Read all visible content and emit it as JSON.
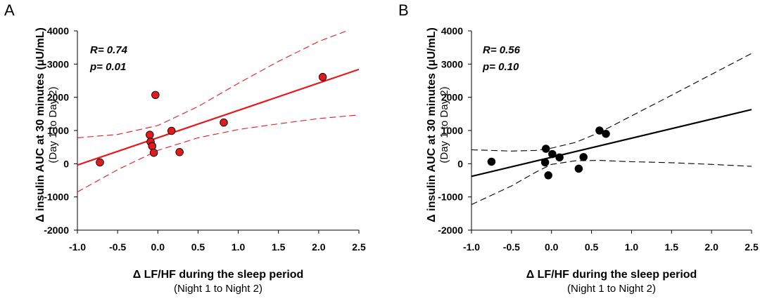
{
  "chart_data": [
    {
      "panel_label": "A",
      "type": "scatter",
      "color": "#e41a1c",
      "point_color": "#e31a1c",
      "ci_style": "dashed",
      "ylabel": "Δ insulin AUC at 30 minutes (μU/mL)",
      "ylabel_sub": "(Day 1 to Day 2)",
      "xlabel": "Δ LF/HF during the sleep period",
      "xlabel_sub": "(Night 1 to Night 2)",
      "xlim": [
        -1.0,
        2.5
      ],
      "ylim": [
        -2000,
        4000
      ],
      "xticks": [
        "-1.0",
        "-0.5",
        "0.0",
        "0.5",
        "1.0",
        "1.5",
        "2.0",
        "2.5"
      ],
      "yticks": [
        "4000",
        "3000",
        "2000",
        "1000",
        "0",
        "-1000",
        "-2000"
      ],
      "r_label": "R",
      "r_value": "= 0.74",
      "p_label": "p",
      "p_value": "= 0.01",
      "grid": false,
      "points": [
        {
          "x": -0.72,
          "y": 40
        },
        {
          "x": -0.1,
          "y": 870
        },
        {
          "x": -0.09,
          "y": 660
        },
        {
          "x": -0.07,
          "y": 530
        },
        {
          "x": -0.05,
          "y": 330
        },
        {
          "x": -0.03,
          "y": 2070
        },
        {
          "x": 0.17,
          "y": 990
        },
        {
          "x": 0.27,
          "y": 350
        },
        {
          "x": 0.82,
          "y": 1240
        },
        {
          "x": 2.05,
          "y": 2610
        }
      ],
      "fit": {
        "x": [
          -1.0,
          2.5
        ],
        "y": [
          -40,
          2840
        ]
      },
      "ci_upper": {
        "x": [
          -1.0,
          -0.5,
          0.0,
          0.5,
          1.0,
          1.5,
          2.0,
          2.35
        ],
        "y": [
          780,
          880,
          1150,
          1720,
          2420,
          3080,
          3680,
          4000
        ]
      },
      "ci_lower": {
        "x": [
          -1.0,
          -0.5,
          0.0,
          0.5,
          1.0,
          1.5,
          2.0,
          2.5
        ],
        "y": [
          -850,
          -180,
          400,
          780,
          1030,
          1200,
          1360,
          1470
        ]
      }
    },
    {
      "panel_label": "B",
      "type": "scatter",
      "color": "#000000",
      "point_color": "#000000",
      "ci_style": "dashed",
      "ylabel": "Δ insulin AUC at 30 minutes (μU/mL)",
      "ylabel_sub": "(Day 1 to Day 2)",
      "xlabel": "Δ LF/HF during the sleep period",
      "xlabel_sub": "(Night 1 to Night 2)",
      "xlim": [
        -1.0,
        2.5
      ],
      "ylim": [
        -2000,
        4000
      ],
      "xticks": [
        "-1.0",
        "-0.5",
        "0.0",
        "0.5",
        "1.0",
        "1.5",
        "2.0",
        "2.5"
      ],
      "yticks": [
        "4000",
        "3000",
        "2000",
        "1000",
        "0",
        "-1000",
        "-2000"
      ],
      "r_label": "R",
      "r_value": "= 0.56",
      "p_label": "p",
      "p_value": "= 0.10",
      "grid": false,
      "points": [
        {
          "x": -0.75,
          "y": 60
        },
        {
          "x": -0.07,
          "y": 450
        },
        {
          "x": -0.08,
          "y": 40
        },
        {
          "x": -0.04,
          "y": -350
        },
        {
          "x": 0.01,
          "y": 290
        },
        {
          "x": 0.1,
          "y": 190
        },
        {
          "x": 0.34,
          "y": -150
        },
        {
          "x": 0.4,
          "y": 200
        },
        {
          "x": 0.6,
          "y": 1000
        },
        {
          "x": 0.68,
          "y": 900
        }
      ],
      "fit": {
        "x": [
          -1.0,
          2.5
        ],
        "y": [
          -380,
          1630
        ]
      },
      "ci_upper": {
        "x": [
          -1.0,
          -0.5,
          -0.2,
          0.0,
          0.3,
          0.6,
          1.0,
          1.5,
          2.0,
          2.5
        ],
        "y": [
          420,
          380,
          400,
          470,
          640,
          940,
          1440,
          2060,
          2690,
          3320
        ]
      },
      "ci_lower": {
        "x": [
          -1.0,
          -0.5,
          -0.2,
          0.0,
          0.3,
          0.6,
          1.0,
          1.5,
          2.0,
          2.5
        ],
        "y": [
          -1230,
          -670,
          -260,
          -20,
          90,
          100,
          60,
          30,
          -20,
          -80
        ]
      }
    }
  ]
}
